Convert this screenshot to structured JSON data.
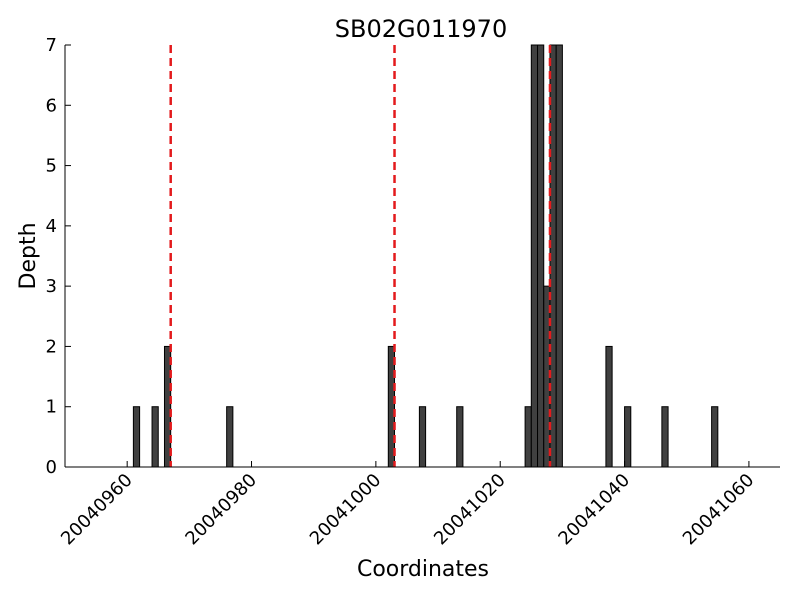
{
  "chart_data": {
    "type": "bar",
    "title": "SB02G011970",
    "xlabel": "Coordinates",
    "ylabel": "Depth",
    "xlim": [
      20040950,
      20041065
    ],
    "ylim": [
      0,
      7
    ],
    "grid": false,
    "bar_width": 1,
    "bars": [
      {
        "x": 20040961.5,
        "depth": 1
      },
      {
        "x": 20040964.5,
        "depth": 1
      },
      {
        "x": 20040966.5,
        "depth": 2
      },
      {
        "x": 20040976.5,
        "depth": 1
      },
      {
        "x": 20041002.5,
        "depth": 2
      },
      {
        "x": 20041007.5,
        "depth": 1
      },
      {
        "x": 20041013.5,
        "depth": 1
      },
      {
        "x": 20041024.5,
        "depth": 1
      },
      {
        "x": 20041025.5,
        "depth": 7
      },
      {
        "x": 20041026.5,
        "depth": 7
      },
      {
        "x": 20041027.5,
        "depth": 3
      },
      {
        "x": 20041028.5,
        "depth": 7
      },
      {
        "x": 20041029.5,
        "depth": 7
      },
      {
        "x": 20041037.5,
        "depth": 2
      },
      {
        "x": 20041040.5,
        "depth": 1
      },
      {
        "x": 20041046.5,
        "depth": 1
      },
      {
        "x": 20041054.5,
        "depth": 1
      }
    ],
    "reference_lines": [
      20040967,
      20041003,
      20041028
    ],
    "x_ticks": [
      {
        "value": 20040960,
        "label": "20040960"
      },
      {
        "value": 20040980,
        "label": "20040980"
      },
      {
        "value": 20041000,
        "label": "20041000"
      },
      {
        "value": 20041020,
        "label": "20041020"
      },
      {
        "value": 20041040,
        "label": "20041040"
      },
      {
        "value": 20041060,
        "label": "20041060"
      }
    ],
    "y_ticks": [
      {
        "value": 0,
        "label": "0"
      },
      {
        "value": 1,
        "label": "1"
      },
      {
        "value": 2,
        "label": "2"
      },
      {
        "value": 3,
        "label": "3"
      },
      {
        "value": 4,
        "label": "4"
      },
      {
        "value": 5,
        "label": "5"
      },
      {
        "value": 6,
        "label": "6"
      },
      {
        "value": 7,
        "label": "7"
      }
    ],
    "colors": {
      "bar_fill": "#404040",
      "bar_stroke": "#000000",
      "reference_line": "#e31a1c",
      "axis": "#000000"
    }
  }
}
